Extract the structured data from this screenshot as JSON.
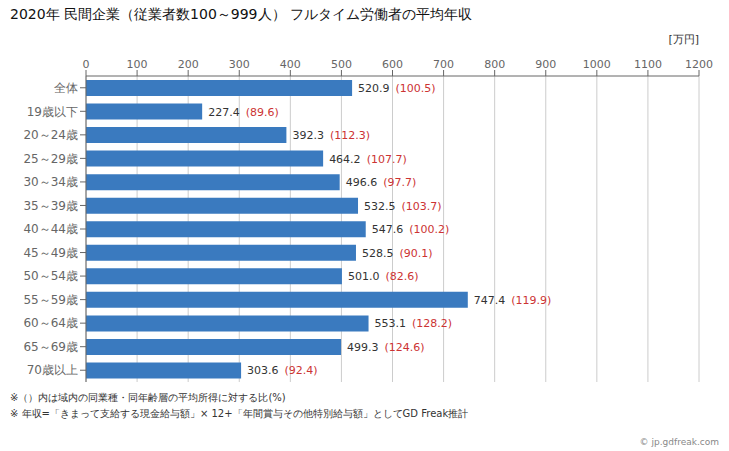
{
  "chart_data": {
    "type": "bar",
    "orientation": "horizontal",
    "title": "2020年 民間企業（従業者数100～999人） フルタイム労働者の平均年収",
    "xlabel": "[万円]",
    "categories": [
      "全体",
      "19歳以下",
      "20～24歳",
      "25～29歳",
      "30～34歳",
      "35～39歳",
      "40～44歳",
      "45～49歳",
      "50～54歳",
      "55～59歳",
      "60～64歳",
      "65～69歳",
      "70歳以上"
    ],
    "values": [
      520.9,
      227.4,
      392.3,
      464.2,
      496.6,
      532.5,
      547.6,
      528.5,
      501.0,
      747.4,
      553.1,
      499.3,
      303.6
    ],
    "value_labels": [
      "520.9",
      "227.4",
      "392.3",
      "464.2",
      "496.6",
      "532.5",
      "547.6",
      "528.5",
      "501.0",
      "747.4",
      "553.1",
      "499.3",
      "303.6"
    ],
    "ratios": [
      100.5,
      89.6,
      112.3,
      107.7,
      97.7,
      103.7,
      100.2,
      90.1,
      82.6,
      119.9,
      128.2,
      124.6,
      92.4
    ],
    "color": "#3a7abf",
    "xlim": [
      0,
      1200
    ],
    "xticks": [
      0,
      100,
      200,
      300,
      400,
      500,
      600,
      700,
      800,
      900,
      1000,
      1100,
      1200
    ],
    "grid": true,
    "data_labels": true,
    "annotations": [
      "※（）内は域内の同業種・同年齢層の平均所得に対する比(%)",
      "※ 年収=「きまって支給する現金給与額」× 12+「年間賞与その他特別給与額」としてGD Freak推計",
      "© jp.gdfreak.com"
    ]
  }
}
